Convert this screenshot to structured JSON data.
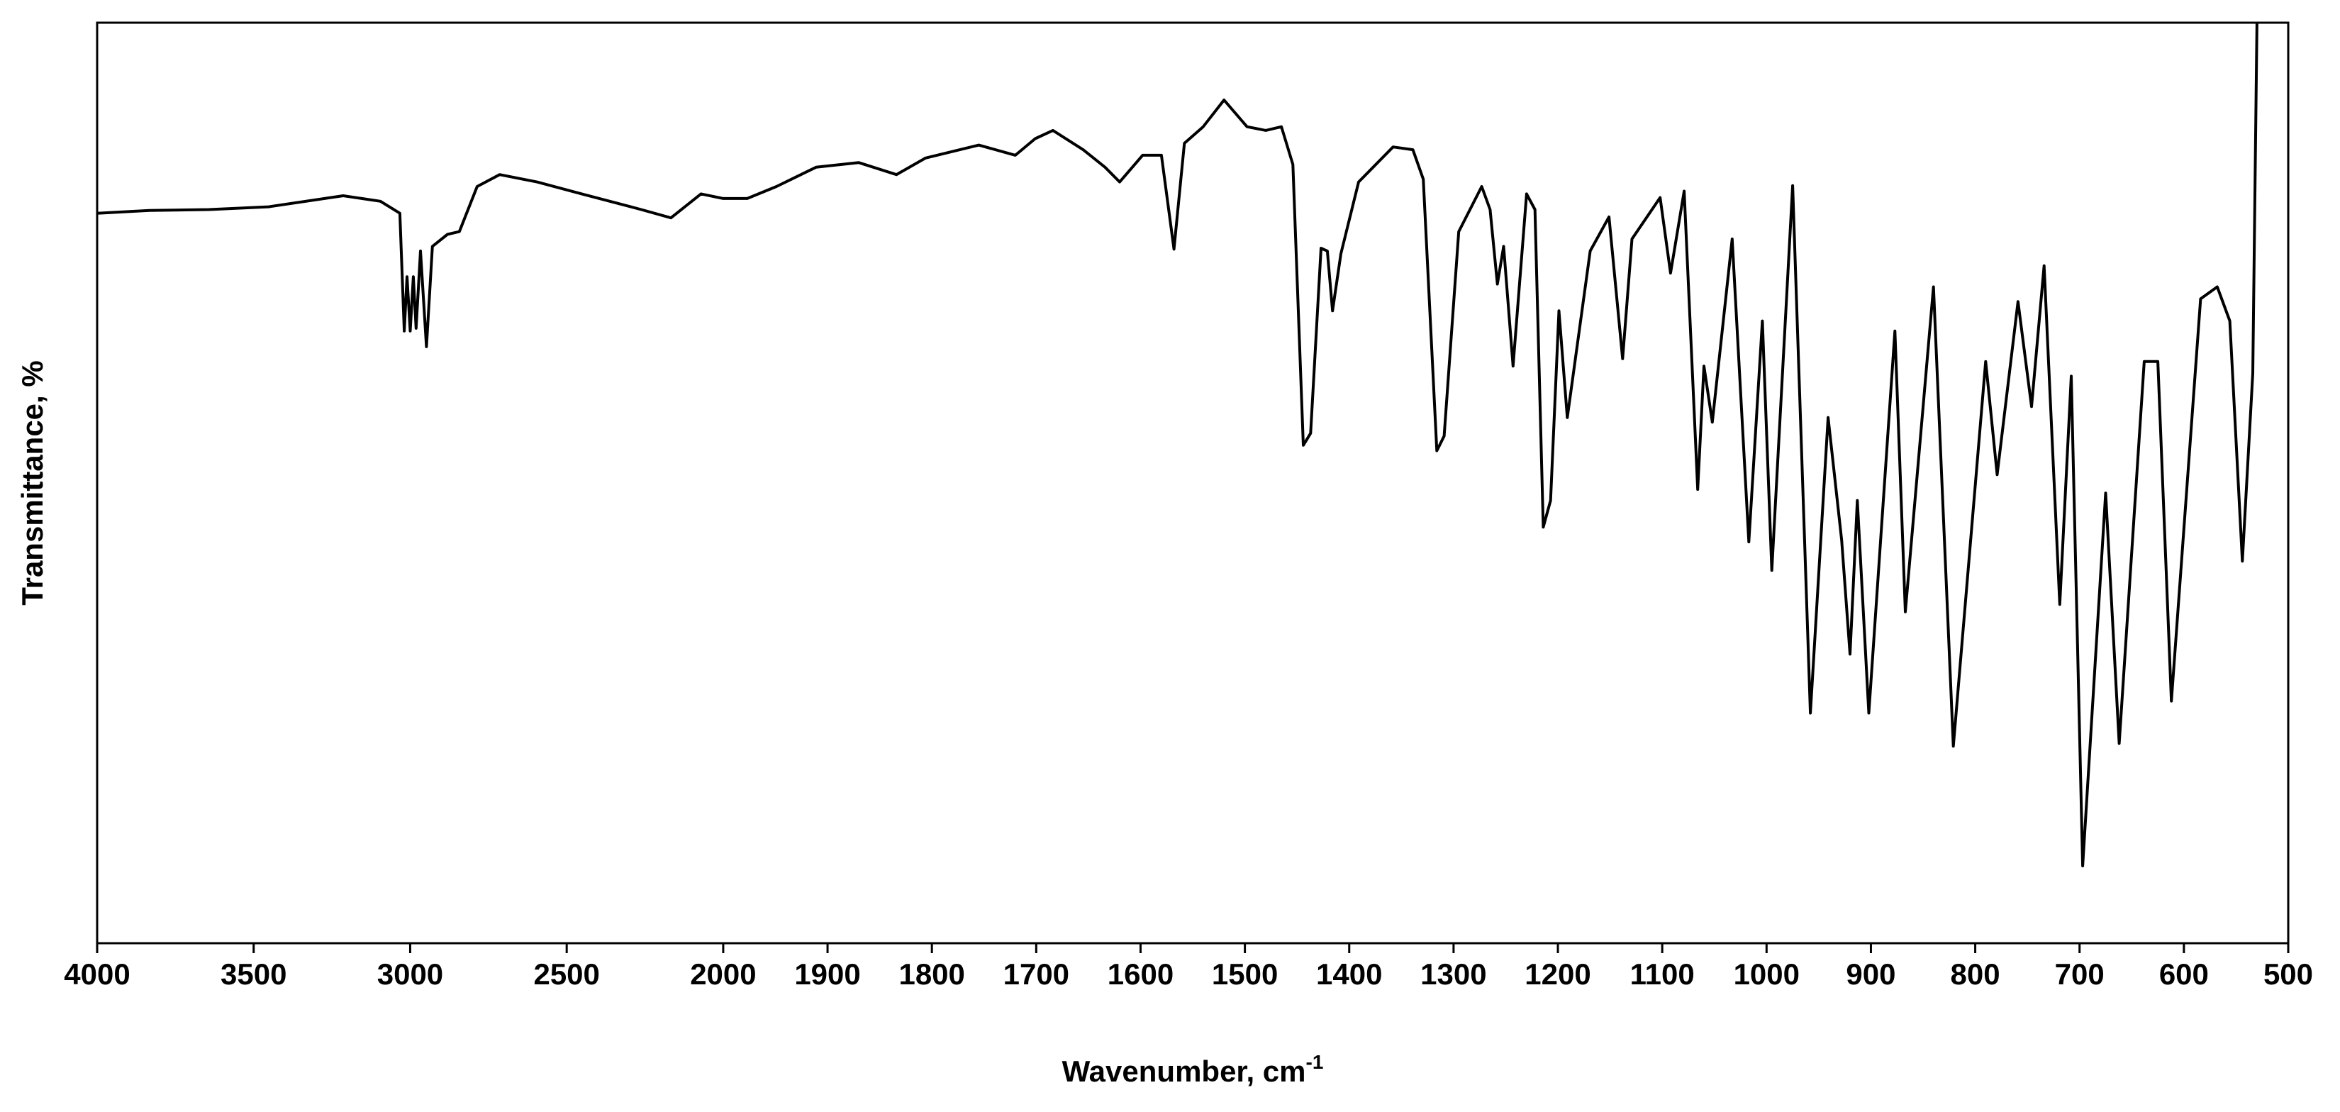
{
  "chart_data": {
    "type": "line",
    "xlabel": {
      "text": "Wavenumber, cm",
      "superscript": "-1"
    },
    "ylabel": "Transmittance, %",
    "color": "#000000",
    "x_break": 2000,
    "x_zoom": 3.333,
    "xlim": [
      4000,
      500
    ],
    "xticks": [
      4000,
      3500,
      3000,
      2500,
      2000,
      1900,
      1800,
      1700,
      1600,
      1500,
      1400,
      1300,
      1200,
      1100,
      1000,
      900,
      800,
      700,
      600,
      500
    ],
    "ylim": [
      0,
      100
    ],
    "x": [
      4000,
      3833,
      3643,
      3452,
      3214,
      3095,
      3033,
      3019,
      3010,
      3000,
      2990,
      2981,
      2967,
      2948,
      2929,
      2881,
      2843,
      2786,
      2714,
      2595,
      2452,
      2262,
      2167,
      2071,
      2000,
      1977,
      1949,
      1911,
      1870,
      1834,
      1806,
      1755,
      1720,
      1701,
      1684,
      1655,
      1634,
      1620,
      1598,
      1580,
      1568,
      1558,
      1540,
      1520,
      1498,
      1480,
      1465,
      1454,
      1444,
      1437,
      1427,
      1421,
      1416,
      1408,
      1391,
      1358,
      1339,
      1329,
      1316,
      1309,
      1295,
      1273,
      1265,
      1258,
      1252,
      1243,
      1230,
      1222,
      1214,
      1207,
      1199,
      1191,
      1169,
      1151,
      1138,
      1129,
      1102,
      1092,
      1079,
      1066,
      1060,
      1052,
      1033,
      1017,
      1004,
      995,
      975,
      958,
      941,
      928,
      920,
      913,
      902,
      877,
      867,
      840,
      821,
      790,
      779,
      759,
      746,
      734,
      719,
      708,
      697,
      675,
      662,
      638,
      625,
      612,
      584,
      568,
      556,
      544,
      534,
      530
    ],
    "values": [
      79.3,
      79.6,
      79.7,
      80.0,
      81.2,
      80.6,
      79.3,
      66.5,
      72.4,
      66.5,
      72.4,
      66.8,
      75.2,
      64.8,
      75.7,
      77.0,
      77.3,
      82.2,
      83.5,
      82.7,
      81.4,
      79.7,
      78.8,
      81.4,
      80.9,
      80.9,
      82.2,
      84.3,
      84.8,
      83.5,
      85.3,
      86.7,
      85.6,
      87.4,
      88.3,
      86.2,
      84.3,
      82.7,
      85.6,
      85.6,
      75.4,
      86.9,
      88.7,
      91.6,
      88.7,
      88.3,
      88.7,
      84.6,
      54.1,
      55.4,
      75.5,
      75.2,
      68.7,
      74.9,
      82.7,
      86.5,
      86.2,
      83.0,
      53.5,
      55.1,
      77.3,
      82.2,
      79.7,
      71.6,
      75.7,
      62.7,
      81.4,
      79.7,
      45.2,
      48.1,
      68.7,
      57.1,
      75.2,
      78.9,
      63.5,
      76.5,
      81.0,
      72.8,
      81.7,
      49.3,
      62.7,
      56.6,
      76.5,
      43.6,
      67.6,
      40.5,
      82.3,
      25.0,
      57.1,
      43.8,
      31.4,
      48.1,
      25.0,
      66.5,
      36.0,
      71.3,
      21.4,
      63.2,
      50.9,
      69.7,
      58.3,
      73.6,
      36.8,
      61.6,
      8.4,
      48.9,
      21.7,
      63.2,
      63.2,
      26.3,
      70.0,
      71.3,
      67.6,
      41.5,
      61.9,
      100
    ]
  }
}
